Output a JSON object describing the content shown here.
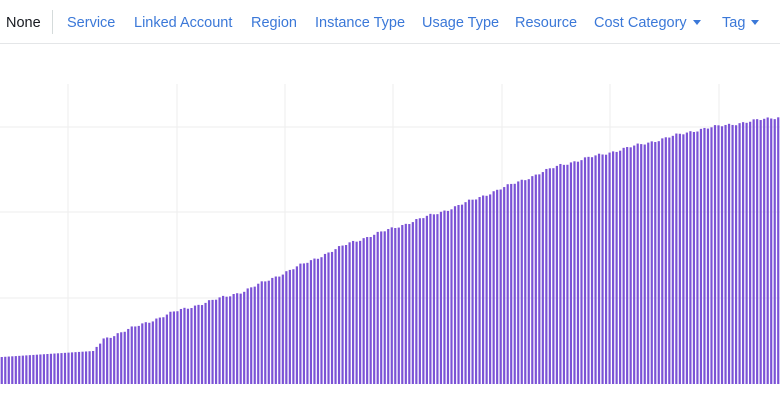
{
  "group_by": {
    "selected": "None",
    "options": [
      {
        "label": "Service",
        "dropdown": false
      },
      {
        "label": "Linked Account",
        "dropdown": false
      },
      {
        "label": "Region",
        "dropdown": false
      },
      {
        "label": "Instance Type",
        "dropdown": false
      },
      {
        "label": "Usage Type",
        "dropdown": false
      },
      {
        "label": "Resource",
        "dropdown": false
      },
      {
        "label": "Cost Category",
        "dropdown": true
      },
      {
        "label": "Tag",
        "dropdown": true
      }
    ]
  },
  "colors": {
    "link": "#3b78d8",
    "bar": "#7b52d6",
    "grid": "#eeeeee"
  },
  "chart_data": {
    "type": "bar",
    "grid": true,
    "title": "",
    "xlabel": "",
    "ylabel": "",
    "ylim": [
      0,
      100
    ],
    "trend": {
      "start": 9,
      "flat_until": 27,
      "flat_end_value": 11,
      "step": [
        {
          "at": 30,
          "value": 15
        },
        {
          "at": 50,
          "value": 24
        },
        {
          "at": 70,
          "value": 31
        },
        {
          "at": 100,
          "value": 47
        },
        {
          "at": 130,
          "value": 59
        },
        {
          "at": 160,
          "value": 73
        },
        {
          "at": 200,
          "value": 85
        },
        {
          "at": 222,
          "value": 89
        }
      ]
    }
  }
}
